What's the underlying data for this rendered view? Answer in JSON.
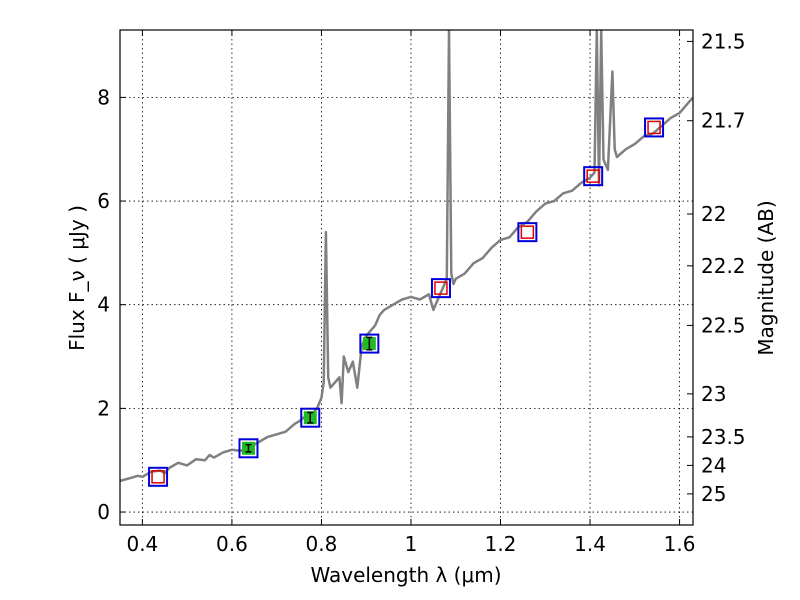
{
  "chart_data": {
    "type": "line",
    "xlabel": "Wavelength  λ (μm)",
    "ylabel": "Flux  F_ν  ( μJy )",
    "ylabel_right": "Magnitude (AB)",
    "xlim": [
      0.35,
      1.63
    ],
    "ylim": [
      -0.25,
      9.3
    ],
    "grid": true,
    "x_ticks": [
      0.4,
      0.6,
      0.8,
      1.0,
      1.2,
      1.4,
      1.6
    ],
    "x_tick_labels": [
      "0.4",
      "0.6",
      "0.8",
      "1",
      "1.2",
      "1.4",
      "1.6"
    ],
    "y_ticks": [
      0,
      2,
      4,
      6,
      8
    ],
    "y_tick_labels": [
      "0",
      "2",
      "4",
      "6",
      "8"
    ],
    "right_axis_ticks": [
      {
        "flux": 9.08,
        "label": "21.5"
      },
      {
        "flux": 7.55,
        "label": "21.7"
      },
      {
        "flux": 5.75,
        "label": "22"
      },
      {
        "flux": 4.75,
        "label": "22.2"
      },
      {
        "flux": 3.6,
        "label": "22.5"
      },
      {
        "flux": 2.28,
        "label": "23"
      },
      {
        "flux": 1.45,
        "label": "23.5"
      },
      {
        "flux": 0.9,
        "label": "24"
      },
      {
        "flux": 0.35,
        "label": "25"
      }
    ],
    "series": [
      {
        "role": "template-spectrum",
        "color": "#808080",
        "x": [
          0.35,
          0.37,
          0.39,
          0.4,
          0.42,
          0.44,
          0.45,
          0.46,
          0.48,
          0.5,
          0.52,
          0.54,
          0.55,
          0.56,
          0.58,
          0.6,
          0.62,
          0.64,
          0.65,
          0.66,
          0.68,
          0.7,
          0.72,
          0.74,
          0.75,
          0.76,
          0.77,
          0.78,
          0.79,
          0.8,
          0.805,
          0.81,
          0.815,
          0.82,
          0.83,
          0.84,
          0.845,
          0.85,
          0.86,
          0.87,
          0.88,
          0.89,
          0.9,
          0.91,
          0.92,
          0.93,
          0.94,
          0.96,
          0.98,
          1.0,
          1.02,
          1.04,
          1.05,
          1.06,
          1.07,
          1.08,
          1.085,
          1.09,
          1.095,
          1.1,
          1.12,
          1.14,
          1.16,
          1.18,
          1.2,
          1.22,
          1.24,
          1.26,
          1.28,
          1.3,
          1.32,
          1.34,
          1.36,
          1.38,
          1.4,
          1.41,
          1.415,
          1.42,
          1.425,
          1.43,
          1.44,
          1.45,
          1.455,
          1.46,
          1.48,
          1.5,
          1.52,
          1.54,
          1.56,
          1.58,
          1.6,
          1.62,
          1.63
        ],
        "y": [
          0.6,
          0.65,
          0.7,
          0.68,
          0.78,
          0.8,
          0.75,
          0.85,
          0.95,
          0.9,
          1.02,
          1.0,
          1.1,
          1.05,
          1.15,
          1.2,
          1.18,
          1.28,
          1.3,
          1.35,
          1.45,
          1.5,
          1.55,
          1.7,
          1.75,
          1.82,
          1.85,
          1.9,
          2.0,
          2.2,
          2.5,
          5.4,
          2.6,
          2.4,
          2.5,
          2.6,
          2.1,
          3.0,
          2.7,
          2.9,
          2.4,
          3.2,
          3.4,
          3.5,
          3.6,
          3.8,
          3.9,
          4.0,
          4.1,
          4.15,
          4.1,
          4.2,
          3.9,
          4.1,
          4.3,
          4.5,
          9.3,
          4.6,
          4.4,
          4.5,
          4.6,
          4.8,
          4.9,
          5.1,
          5.25,
          5.3,
          5.5,
          5.6,
          5.8,
          5.95,
          6.0,
          6.15,
          6.2,
          6.35,
          6.45,
          6.55,
          9.3,
          6.3,
          9.3,
          6.8,
          6.6,
          8.5,
          7.0,
          6.85,
          7.0,
          7.1,
          7.25,
          7.3,
          7.45,
          7.6,
          7.7,
          7.9,
          8.0
        ]
      }
    ],
    "photometry": {
      "x": [
        0.435,
        0.637,
        0.775,
        0.907,
        1.067,
        1.26,
        1.407,
        1.543
      ],
      "observed": [
        0.68,
        1.23,
        1.82,
        3.25,
        4.32,
        5.4,
        6.48,
        7.42
      ],
      "observed_error": [
        0.0,
        0.07,
        0.1,
        0.12,
        0.0,
        0.0,
        0.0,
        0.0
      ],
      "model": [
        0.68,
        1.23,
        1.82,
        3.25,
        4.32,
        5.4,
        6.48,
        7.42
      ],
      "detected_marker_color": "#22bb22",
      "model_marker_color": "#0000dd",
      "upper_marker_color": "#dd0000"
    }
  }
}
